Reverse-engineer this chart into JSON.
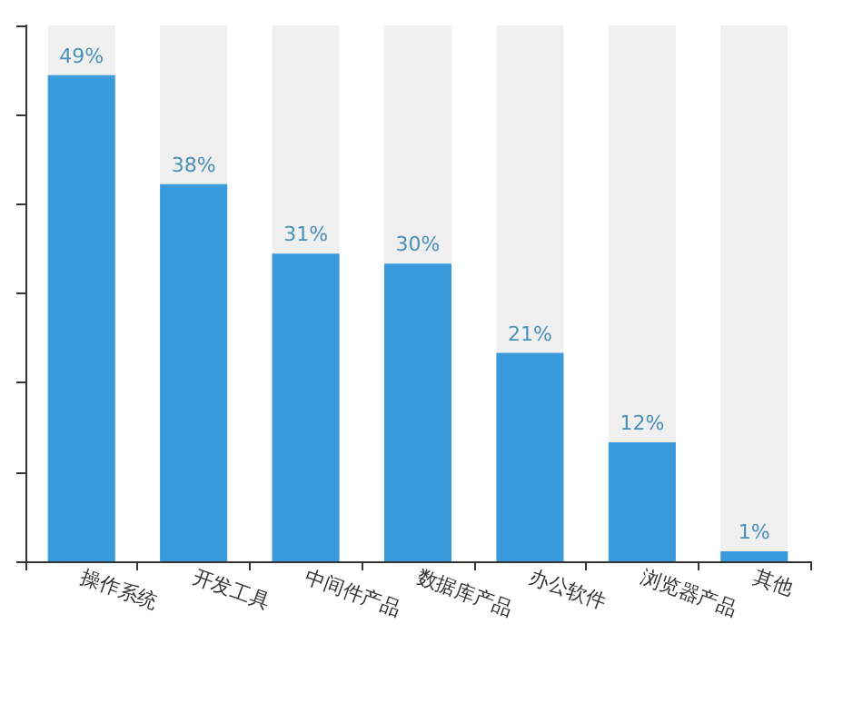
{
  "chart_data": {
    "type": "bar",
    "categories": [
      "操作系统",
      "开发工具",
      "中间件产品",
      "数据库产品",
      "办公软件",
      "浏览器产品",
      "其他"
    ],
    "values": [
      49,
      38,
      31,
      30,
      21,
      12,
      1
    ],
    "value_labels": [
      "49%",
      "38%",
      "31%",
      "30%",
      "21%",
      "12%",
      "1%"
    ],
    "color": "#3a9bdc",
    "ylim": [
      0,
      54
    ],
    "yticks": [
      {
        "value": 0,
        "label": null
      },
      {
        "value": 9,
        "label": null
      },
      {
        "value": 18,
        "label": null
      },
      {
        "value": 27,
        "label": null
      },
      {
        "value": 36,
        "label": null
      },
      {
        "value": 45,
        "label": null
      },
      {
        "value": 54,
        "label": null
      }
    ],
    "tick_labels": "x",
    "grid": false
  }
}
